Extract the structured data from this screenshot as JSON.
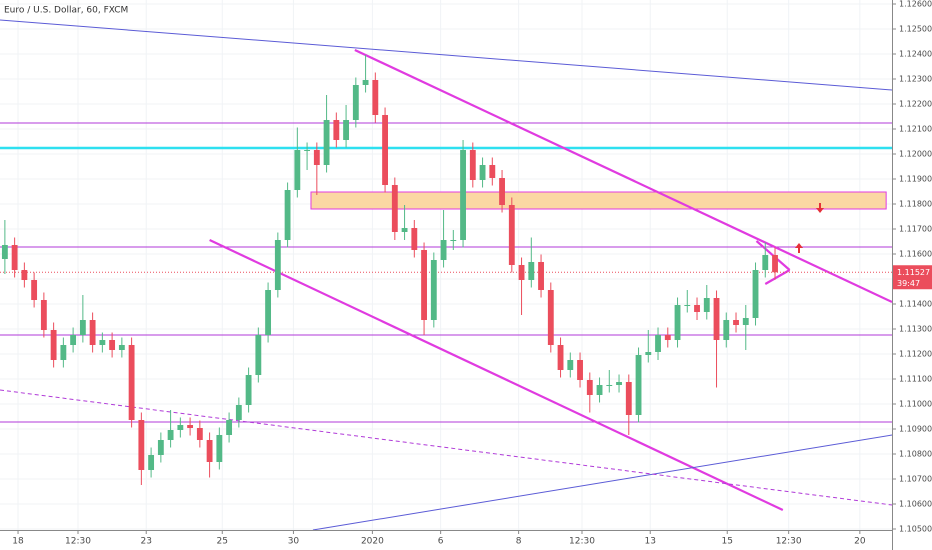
{
  "chart_data": {
    "type": "candlestick",
    "title": "Euro / U.S. Dollar, 60, FXCM",
    "countdown": "39:47",
    "up_color": "#53b987",
    "down_color": "#eb4d5c",
    "grid": true,
    "xlim": [
      -0.5,
      91
    ],
    "ylim": [
      1.10496,
      1.12616
    ],
    "xticks": [
      {
        "value": 1.35,
        "label": "18"
      },
      {
        "value": 7.5,
        "label": "12:30"
      },
      {
        "value": 14.5,
        "label": "23"
      },
      {
        "value": 22.3,
        "label": "25"
      },
      {
        "value": 29.6,
        "label": "30"
      },
      {
        "value": 37.7,
        "label": "2020"
      },
      {
        "value": 44.7,
        "label": "6"
      },
      {
        "value": 52.7,
        "label": "8"
      },
      {
        "value": 59.2,
        "label": "12:30"
      },
      {
        "value": 66.2,
        "label": "13"
      },
      {
        "value": 74.1,
        "label": "15"
      },
      {
        "value": 80.4,
        "label": "12:30"
      },
      {
        "value": 87.7,
        "label": "20"
      }
    ],
    "yticks": [
      {
        "value": 1.105,
        "label": "1.10500"
      },
      {
        "value": 1.106,
        "label": "1.10600"
      },
      {
        "value": 1.107,
        "label": "1.10700"
      },
      {
        "value": 1.108,
        "label": "1.10800"
      },
      {
        "value": 1.109,
        "label": "1.10900"
      },
      {
        "value": 1.11,
        "label": "1.11000"
      },
      {
        "value": 1.111,
        "label": "1.11100"
      },
      {
        "value": 1.112,
        "label": "1.11200"
      },
      {
        "value": 1.113,
        "label": "1.11300"
      },
      {
        "value": 1.114,
        "label": "1.11400"
      },
      {
        "value": 1.115,
        "label": "1.11500"
      },
      {
        "value": 1.116,
        "label": "1.11600"
      },
      {
        "value": 1.117,
        "label": "1.11700"
      },
      {
        "value": 1.118,
        "label": "1.11800"
      },
      {
        "value": 1.119,
        "label": "1.11900"
      },
      {
        "value": 1.12,
        "label": "1.12000"
      },
      {
        "value": 1.121,
        "label": "1.12100"
      },
      {
        "value": 1.122,
        "label": "1.12200"
      },
      {
        "value": 1.123,
        "label": "1.12300"
      },
      {
        "value": 1.124,
        "label": "1.12400"
      },
      {
        "value": 1.125,
        "label": "1.12500"
      },
      {
        "value": 1.126,
        "label": "1.12600"
      }
    ],
    "open": [
      1.1158,
      1.11636,
      1.11536,
      1.11496,
      1.11416,
      1.11296,
      1.11176,
      1.11236,
      1.11276,
      1.11336,
      1.11236,
      1.11256,
      1.11216,
      1.11236,
      1.10936,
      1.10736,
      1.10796,
      1.10856,
      1.10896,
      1.10916,
      1.10904,
      1.10856,
      1.10768,
      1.10876,
      1.10936,
      1.10996,
      1.11116,
      1.11276,
      1.11456,
      1.11656,
      1.11856,
      1.12016,
      1.12016,
      1.11956,
      1.12136,
      1.12056,
      1.12136,
      1.12276,
      1.12296,
      1.12156,
      1.11876,
      1.11688,
      1.11704,
      1.11616,
      1.11336,
      1.11576,
      1.11656,
      1.11656,
      1.12016,
      1.11896,
      1.11956,
      1.11904,
      1.11796,
      1.11556,
      1.11496,
      1.11568,
      1.11456,
      1.11236,
      1.11136,
      1.11176,
      1.11096,
      1.11036,
      1.11076,
      1.11076,
      1.11088,
      1.10956,
      1.11196,
      1.11208,
      1.11276,
      1.11256,
      1.11396,
      1.11396,
      1.11368,
      1.11424,
      1.11256,
      1.11336,
      1.11316,
      1.11344,
      1.11536,
      1.11596
    ],
    "high": [
      1.11736,
      1.11666,
      1.11566,
      1.11526,
      1.11446,
      1.11326,
      1.11266,
      1.11306,
      1.11436,
      1.11366,
      1.11286,
      1.11286,
      1.11266,
      1.11266,
      1.10966,
      1.10826,
      1.10886,
      1.10976,
      1.10946,
      1.10946,
      1.10934,
      1.10886,
      1.10906,
      1.10966,
      1.11026,
      1.11146,
      1.11306,
      1.11486,
      1.11686,
      1.11886,
      1.12106,
      1.12046,
      1.12046,
      1.12236,
      1.12166,
      1.12196,
      1.12306,
      1.12396,
      1.12326,
      1.12186,
      1.11906,
      1.11796,
      1.11736,
      1.11646,
      1.11606,
      1.11776,
      1.11696,
      1.12056,
      1.12046,
      1.11986,
      1.11986,
      1.11936,
      1.11826,
      1.11586,
      1.11666,
      1.11598,
      1.11486,
      1.11266,
      1.11206,
      1.11206,
      1.11126,
      1.11106,
      1.11136,
      1.11118,
      1.11118,
      1.11226,
      1.11296,
      1.11306,
      1.11306,
      1.11426,
      1.11456,
      1.11426,
      1.11476,
      1.11454,
      1.11366,
      1.11366,
      1.11396,
      1.11566,
      1.11646,
      1.11626
    ],
    "low": [
      1.1152,
      1.11506,
      1.11466,
      1.11386,
      1.11266,
      1.11146,
      1.11146,
      1.11206,
      1.11246,
      1.11206,
      1.11206,
      1.11186,
      1.11186,
      1.10906,
      1.10676,
      1.10706,
      1.10766,
      1.10826,
      1.10866,
      1.10874,
      1.10826,
      1.10706,
      1.10738,
      1.10846,
      1.10906,
      1.10966,
      1.11086,
      1.11246,
      1.11426,
      1.11626,
      1.11826,
      1.11936,
      1.11836,
      1.11926,
      1.12026,
      1.12026,
      1.12106,
      1.12246,
      1.12126,
      1.11846,
      1.11656,
      1.11656,
      1.11586,
      1.11276,
      1.11306,
      1.11546,
      1.11616,
      1.11626,
      1.11866,
      1.11866,
      1.11874,
      1.11766,
      1.11526,
      1.11356,
      1.11466,
      1.11426,
      1.11206,
      1.11106,
      1.11106,
      1.11066,
      1.10966,
      1.11006,
      1.11046,
      1.11046,
      1.10876,
      1.10926,
      1.11166,
      1.11176,
      1.11226,
      1.11226,
      1.11366,
      1.11336,
      1.11338,
      1.11066,
      1.11226,
      1.11286,
      1.11216,
      1.11314,
      1.11506,
      1.11497
    ],
    "close": [
      1.11636,
      1.11536,
      1.11496,
      1.11416,
      1.11296,
      1.11176,
      1.11236,
      1.11276,
      1.11336,
      1.11236,
      1.11256,
      1.11216,
      1.11236,
      1.10936,
      1.10736,
      1.10796,
      1.10856,
      1.10896,
      1.10916,
      1.10904,
      1.10856,
      1.10768,
      1.10876,
      1.10936,
      1.10996,
      1.11116,
      1.11276,
      1.11456,
      1.11656,
      1.11856,
      1.12016,
      1.12016,
      1.11956,
      1.12136,
      1.12056,
      1.12136,
      1.12276,
      1.12296,
      1.12156,
      1.11876,
      1.11688,
      1.11704,
      1.11616,
      1.11336,
      1.11576,
      1.11656,
      1.11656,
      1.12016,
      1.11896,
      1.11956,
      1.11904,
      1.11796,
      1.11556,
      1.11496,
      1.11568,
      1.11456,
      1.11236,
      1.11136,
      1.11176,
      1.11096,
      1.11036,
      1.11076,
      1.11076,
      1.11088,
      1.10956,
      1.11196,
      1.11208,
      1.11276,
      1.11256,
      1.11396,
      1.11396,
      1.11368,
      1.11424,
      1.11256,
      1.11336,
      1.11316,
      1.11344,
      1.11536,
      1.11596,
      1.11527
    ],
    "hlines": [
      {
        "price": 1.12124,
        "color": "#b03ad8"
      },
      {
        "price": 1.12024,
        "color": "#2ee0f0"
      },
      {
        "price": 1.11628,
        "color": "#b03ad8"
      },
      {
        "price": 1.11276,
        "color": "#b03ad8"
      },
      {
        "price": 1.10928,
        "color": "#b03ad8"
      }
    ],
    "zone": {
      "x1": 31.4,
      "x2": 90.4,
      "top": 1.11848,
      "bottom": 1.1178,
      "color": "#fbd7a3",
      "border": "#e03be0"
    },
    "trendlines": [
      {
        "x1": -0.5,
        "p1": 1.12536,
        "x2": 91,
        "p2": 1.12256,
        "color": "#5b5bd6"
      },
      {
        "x1": 35.9,
        "p1": 1.12416,
        "x2": 91,
        "p2": 1.11408,
        "color": "#e03be0"
      },
      {
        "x1": 21.0,
        "p1": 1.11656,
        "x2": 79.8,
        "p2": 1.10576,
        "color": "#e03be0"
      },
      {
        "x1": 77.1,
        "p1": 1.11652,
        "x2": 80.5,
        "p2": 1.11536,
        "color": "#e03be0"
      },
      {
        "x1": 80.5,
        "p1": 1.11536,
        "x2": 78.0,
        "p2": 1.1148,
        "color": "#e03be0"
      },
      {
        "x1": 31.6,
        "p1": 1.10496,
        "x2": 91,
        "p2": 1.10876,
        "color": "#5b5bd6"
      },
      {
        "x1": -0.5,
        "p1": 1.11056,
        "x2": 91,
        "p2": 1.10596,
        "color": "#b03ad8",
        "dashed": true
      }
    ]
  }
}
